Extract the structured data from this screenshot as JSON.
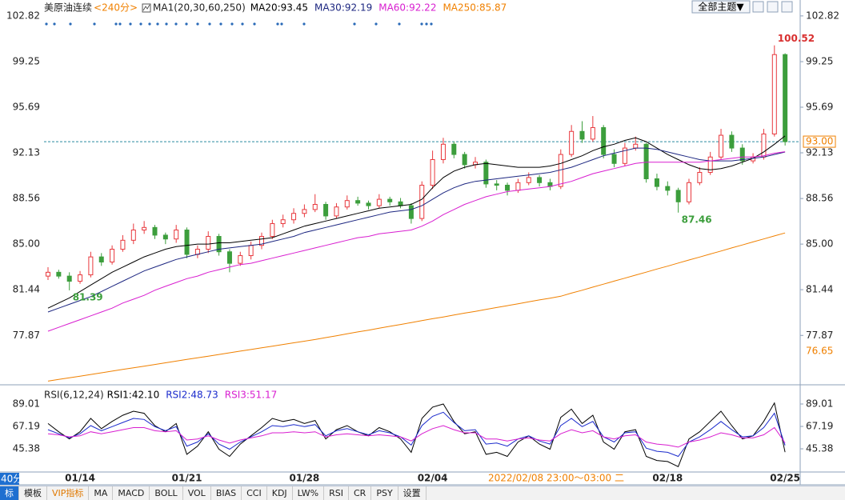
{
  "header": {
    "symbol": "美原油连续",
    "period": "<240分>",
    "indicator": "MA1(20,30,60,250)",
    "theme_button": "全部主题▼"
  },
  "chart_data": [
    {
      "type": "candlestick",
      "categories": [
        null,
        null,
        null,
        "01/14",
        null,
        null,
        null,
        null,
        null,
        null,
        null,
        null,
        null,
        "01/21",
        null,
        null,
        null,
        null,
        null,
        null,
        null,
        null,
        null,
        null,
        "01/28",
        null,
        null,
        null,
        null,
        null,
        null,
        null,
        null,
        null,
        null,
        null,
        "02/04",
        null,
        null,
        null,
        null,
        null,
        null,
        null,
        null,
        null,
        null,
        null,
        null,
        null,
        null,
        null,
        null,
        null,
        null,
        null,
        null,
        null,
        "02/18",
        null,
        null,
        null,
        null,
        null,
        null,
        null,
        null,
        null,
        null,
        "02/25"
      ],
      "open": [
        82.5,
        82.8,
        82.5,
        82.1,
        82.6,
        84.0,
        83.6,
        84.6,
        85.3,
        86.1,
        86.3,
        85.7,
        85.4,
        86.1,
        84.2,
        84.6,
        85.6,
        84.4,
        83.5,
        84.1,
        84.9,
        85.6,
        86.6,
        86.9,
        87.4,
        87.7,
        88.1,
        87.2,
        87.9,
        88.4,
        88.2,
        88.0,
        88.5,
        88.3,
        88.0,
        87.0,
        89.6,
        91.6,
        92.8,
        92.0,
        91.2,
        91.4,
        89.7,
        89.6,
        89.2,
        89.8,
        90.2,
        89.8,
        89.5,
        92.0,
        93.8,
        93.2,
        94.1,
        92.0,
        91.3,
        92.5,
        92.8,
        90.1,
        89.5,
        89.2,
        88.3,
        89.8,
        90.6,
        91.8,
        93.5,
        92.5,
        91.5,
        91.8,
        93.6,
        99.8
      ],
      "high": [
        83.2,
        83.0,
        82.8,
        82.9,
        84.4,
        84.3,
        84.9,
        85.7,
        86.6,
        86.8,
        86.5,
        85.9,
        86.5,
        86.3,
        84.9,
        86.0,
        85.8,
        84.6,
        84.4,
        85.2,
        85.9,
        86.9,
        87.3,
        87.8,
        88.1,
        88.9,
        88.3,
        88.2,
        88.8,
        88.7,
        88.4,
        88.9,
        88.7,
        88.6,
        88.2,
        89.9,
        92.3,
        93.3,
        93.0,
        92.2,
        91.8,
        91.6,
        90.0,
        89.8,
        90.1,
        90.6,
        90.4,
        90.1,
        92.4,
        94.3,
        94.6,
        95.0,
        94.3,
        92.4,
        92.9,
        93.4,
        92.9,
        90.5,
        89.9,
        89.4,
        90.1,
        91.0,
        92.2,
        94.0,
        93.8,
        92.8,
        92.1,
        94.0,
        100.52,
        99.9
      ],
      "low": [
        82.2,
        82.3,
        81.39,
        81.9,
        82.4,
        83.3,
        83.4,
        84.4,
        85.0,
        85.8,
        85.4,
        85.0,
        85.1,
        83.9,
        83.9,
        84.3,
        84.1,
        82.8,
        83.3,
        83.8,
        84.6,
        85.4,
        86.3,
        86.6,
        87.1,
        87.5,
        86.9,
        87.0,
        87.7,
        88.0,
        87.7,
        87.8,
        88.0,
        87.8,
        86.6,
        86.8,
        89.3,
        91.3,
        91.7,
        90.9,
        90.9,
        89.4,
        89.2,
        88.8,
        89.0,
        89.6,
        89.5,
        89.2,
        89.3,
        91.8,
        92.9,
        93.0,
        91.7,
        91.0,
        91.1,
        92.3,
        89.8,
        89.2,
        88.8,
        87.46,
        88.1,
        89.6,
        90.4,
        91.6,
        92.2,
        91.2,
        91.3,
        91.6,
        93.4,
        92.7
      ],
      "close": [
        82.8,
        82.5,
        82.1,
        82.6,
        84.0,
        83.6,
        84.6,
        85.3,
        86.1,
        86.3,
        85.7,
        85.4,
        86.1,
        84.2,
        84.6,
        85.6,
        84.4,
        83.5,
        84.1,
        84.9,
        85.6,
        86.6,
        86.9,
        87.4,
        87.7,
        88.1,
        87.2,
        87.9,
        88.4,
        88.2,
        88.0,
        88.5,
        88.3,
        88.0,
        87.0,
        89.6,
        91.6,
        92.8,
        92.0,
        91.2,
        91.4,
        89.7,
        89.6,
        89.2,
        89.8,
        90.2,
        89.8,
        89.5,
        92.0,
        93.8,
        93.2,
        94.1,
        92.0,
        91.3,
        92.5,
        92.8,
        90.1,
        89.5,
        89.2,
        88.3,
        89.8,
        90.6,
        91.8,
        93.5,
        92.5,
        91.5,
        91.8,
        93.6,
        99.8,
        93.0
      ],
      "up_color": "#e8383d",
      "down_color": "#3c9e3c",
      "series": [
        {
          "name": "MA20:93.45",
          "color": "#000000",
          "values": [
            80.0,
            80.4,
            80.8,
            81.3,
            81.8,
            82.3,
            82.8,
            83.2,
            83.6,
            84.0,
            84.3,
            84.6,
            84.8,
            84.9,
            85.0,
            85.0,
            85.1,
            85.1,
            85.2,
            85.3,
            85.4,
            85.5,
            85.8,
            86.1,
            86.4,
            86.6,
            86.8,
            87.0,
            87.2,
            87.4,
            87.6,
            87.8,
            87.9,
            88.0,
            88.1,
            88.5,
            89.4,
            90.2,
            90.7,
            91.0,
            91.2,
            91.3,
            91.2,
            91.1,
            91.0,
            91.0,
            91.0,
            91.1,
            91.3,
            91.6,
            91.9,
            92.3,
            92.6,
            92.8,
            93.1,
            93.3,
            93.0,
            92.5,
            92.0,
            91.6,
            91.2,
            90.9,
            90.8,
            90.9,
            91.1,
            91.4,
            91.7,
            92.2,
            92.8,
            93.45
          ]
        },
        {
          "name": "MA30:92.19",
          "color": "#1c2680",
          "values": [
            79.7,
            80.0,
            80.3,
            80.6,
            80.9,
            81.3,
            81.7,
            82.1,
            82.5,
            82.9,
            83.2,
            83.5,
            83.8,
            84.0,
            84.2,
            84.4,
            84.6,
            84.7,
            84.8,
            84.9,
            85.0,
            85.2,
            85.4,
            85.6,
            85.9,
            86.1,
            86.3,
            86.5,
            86.7,
            86.9,
            87.1,
            87.3,
            87.5,
            87.6,
            87.7,
            88.0,
            88.5,
            89.0,
            89.4,
            89.7,
            89.9,
            90.0,
            90.1,
            90.2,
            90.3,
            90.4,
            90.5,
            90.6,
            90.8,
            91.0,
            91.3,
            91.6,
            91.9,
            92.1,
            92.3,
            92.5,
            92.5,
            92.4,
            92.2,
            92.0,
            91.8,
            91.6,
            91.5,
            91.5,
            91.5,
            91.6,
            91.7,
            91.8,
            92.0,
            92.19
          ]
        },
        {
          "name": "MA60:92.22",
          "color": "#d81ed0",
          "values": [
            78.2,
            78.5,
            78.8,
            79.1,
            79.4,
            79.7,
            80.0,
            80.4,
            80.7,
            81.0,
            81.4,
            81.7,
            82.0,
            82.3,
            82.5,
            82.8,
            83.0,
            83.2,
            83.4,
            83.5,
            83.7,
            83.9,
            84.1,
            84.3,
            84.5,
            84.7,
            84.9,
            85.1,
            85.3,
            85.5,
            85.6,
            85.8,
            85.9,
            86.0,
            86.1,
            86.4,
            86.8,
            87.3,
            87.7,
            88.1,
            88.4,
            88.7,
            88.9,
            89.1,
            89.2,
            89.3,
            89.4,
            89.5,
            89.7,
            89.9,
            90.2,
            90.5,
            90.7,
            90.9,
            91.1,
            91.3,
            91.4,
            91.4,
            91.4,
            91.4,
            91.4,
            91.4,
            91.5,
            91.6,
            91.7,
            91.8,
            91.8,
            91.9,
            92.1,
            92.22
          ]
        },
        {
          "name": "MA250:85.87",
          "color": "#f08000",
          "values": [
            74.3,
            74.43,
            74.56,
            74.69,
            74.82,
            74.95,
            75.08,
            75.21,
            75.34,
            75.47,
            75.6,
            75.73,
            75.86,
            75.99,
            76.12,
            76.25,
            76.38,
            76.51,
            76.64,
            76.77,
            76.9,
            77.03,
            77.16,
            77.29,
            77.42,
            77.55,
            77.7,
            77.84,
            77.99,
            78.14,
            78.28,
            78.43,
            78.58,
            78.72,
            78.87,
            79.02,
            79.17,
            79.31,
            79.46,
            79.61,
            79.75,
            79.9,
            80.05,
            80.19,
            80.34,
            80.49,
            80.64,
            80.78,
            80.93,
            81.17,
            81.4,
            81.64,
            81.87,
            82.11,
            82.34,
            82.58,
            82.81,
            83.05,
            83.28,
            83.52,
            83.76,
            83.99,
            84.23,
            84.46,
            84.7,
            84.93,
            85.17,
            85.4,
            85.64,
            85.87
          ]
        }
      ],
      "ylim": [
        74.2,
        103.75
      ],
      "yticks": [
        102.82,
        99.25,
        95.69,
        92.13,
        88.56,
        {
          "value": 85,
          "label": "85.00"
        },
        81.44,
        77.87
      ],
      "last_price": {
        "value": 93,
        "label": "93.00"
      },
      "marker_label": 76.65,
      "cursor_time": "2022/02/08 23:00～03:00 二"
    },
    {
      "type": "line",
      "title": "RSI(6,12,24)",
      "series": [
        {
          "name": "RSI1:42.10",
          "color": "#000000",
          "values": [
            70,
            62,
            55,
            62,
            75,
            65,
            72,
            78,
            82,
            80,
            68,
            62,
            70,
            40,
            48,
            62,
            45,
            38,
            50,
            58,
            66,
            75,
            72,
            74,
            70,
            73,
            55,
            64,
            68,
            62,
            58,
            66,
            62,
            55,
            42,
            75,
            86,
            89,
            72,
            60,
            62,
            40,
            42,
            38,
            52,
            58,
            50,
            45,
            76,
            84,
            70,
            78,
            52,
            45,
            62,
            64,
            38,
            34,
            33,
            28,
            55,
            62,
            72,
            82,
            68,
            55,
            58,
            72,
            90,
            42.1
          ]
        },
        {
          "name": "RSI2:48.73",
          "color": "#1a2acc",
          "values": [
            64,
            60,
            56,
            60,
            68,
            63,
            67,
            71,
            75,
            74,
            67,
            63,
            67,
            48,
            52,
            60,
            50,
            45,
            52,
            57,
            62,
            68,
            67,
            69,
            67,
            69,
            58,
            63,
            65,
            62,
            59,
            63,
            61,
            57,
            49,
            68,
            77,
            81,
            71,
            63,
            64,
            50,
            51,
            48,
            55,
            58,
            53,
            50,
            68,
            75,
            67,
            72,
            57,
            52,
            61,
            62,
            46,
            43,
            42,
            38,
            52,
            57,
            64,
            72,
            64,
            57,
            58,
            66,
            80,
            48.73
          ]
        },
        {
          "name": "RSI3:51.17",
          "color": "#d81ed0",
          "values": [
            60,
            59,
            57,
            58,
            62,
            60,
            62,
            64,
            66,
            66,
            63,
            62,
            63,
            54,
            55,
            58,
            54,
            51,
            54,
            56,
            58,
            61,
            61,
            62,
            61,
            62,
            57,
            59,
            60,
            59,
            58,
            59,
            58,
            57,
            53,
            60,
            65,
            68,
            64,
            61,
            61,
            55,
            55,
            53,
            55,
            56,
            54,
            53,
            60,
            64,
            61,
            63,
            57,
            55,
            58,
            59,
            52,
            50,
            49,
            47,
            52,
            54,
            57,
            61,
            59,
            56,
            56,
            59,
            66,
            51.17
          ]
        }
      ],
      "ylim": [
        22.8,
        104.6
      ],
      "yticks": [
        89.01,
        67.19,
        45.38
      ]
    }
  ],
  "toolbar": {
    "period": "40分",
    "tabs": [
      "标",
      "模板",
      "VIP指标",
      "MA",
      "MACD",
      "BOLL",
      "VOL",
      "BIAS",
      "CCI",
      "KDJ",
      "LW%",
      "RSI",
      "CR",
      "PSY",
      "设置"
    ]
  }
}
